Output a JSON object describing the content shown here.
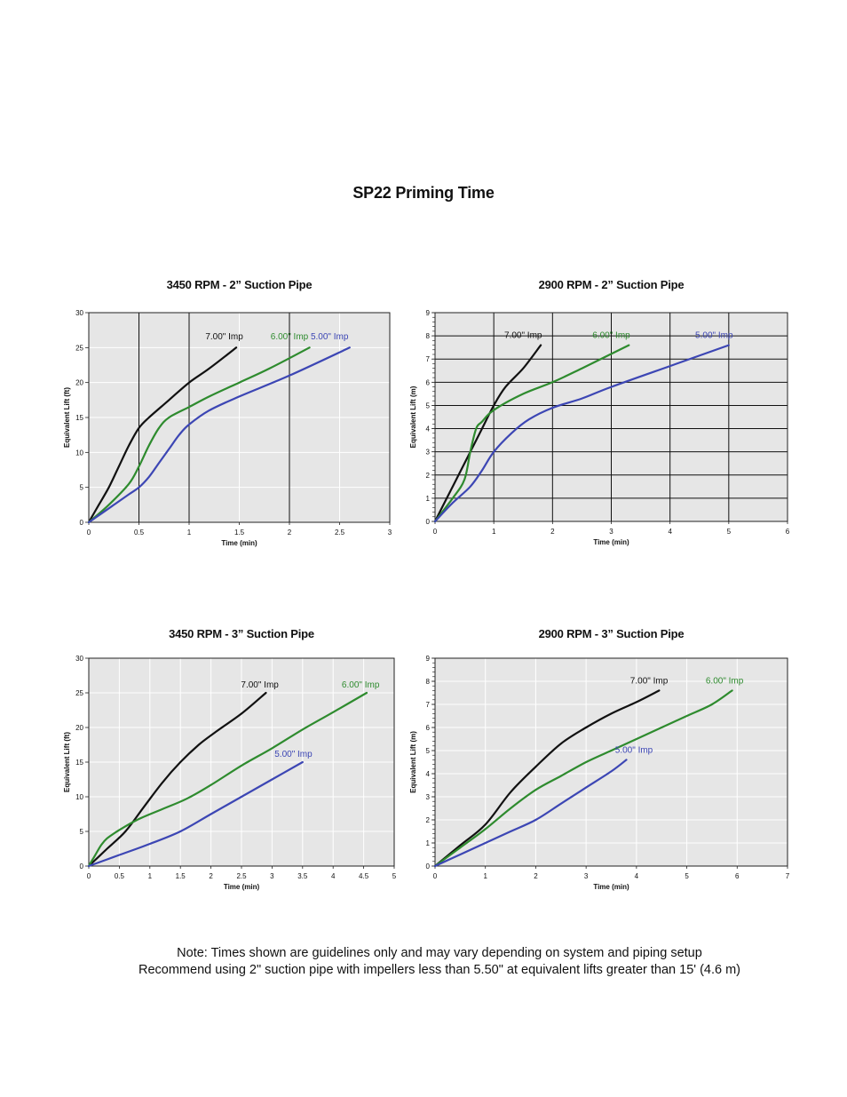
{
  "page_title": "SP22 Priming Time",
  "note_lines": [
    "Note: Times shown are guidelines only and may vary depending on system and piping setup",
    "Recommend using 2\" suction pipe with impellers less than 5.50\" at equivalent lifts greater than 15' (4.6 m)"
  ],
  "colors": {
    "black": "#111111",
    "green": "#2e8b2e",
    "blue": "#3c46b4",
    "plot_bg": "#e6e6e6"
  },
  "chart_data": [
    {
      "type": "line",
      "title": "3450 RPM - 2” Suction Pipe",
      "xlabel": "Time (min)",
      "ylabel": "Equivalent Lift (ft)",
      "xlim": [
        0,
        3
      ],
      "ylim": [
        0,
        30
      ],
      "xticks": [
        "0",
        "0.5",
        "1",
        "1.5",
        "2",
        "2.5",
        "3"
      ],
      "xtick_values": [
        0,
        0.5,
        1,
        1.5,
        2,
        2.5,
        3
      ],
      "yticks": [
        "0",
        "5",
        "10",
        "15",
        "20",
        "25",
        "30"
      ],
      "ytick_values": [
        0,
        5,
        10,
        15,
        20,
        25,
        30
      ],
      "grid": "light",
      "vlines_dark": [
        0.5,
        1,
        2
      ],
      "series": [
        {
          "name": "7.00\" Imp",
          "color": "black",
          "x": [
            0,
            0.1,
            0.2,
            0.3,
            0.4,
            0.5,
            0.6,
            0.8,
            1.0,
            1.2,
            1.47
          ],
          "y": [
            0,
            2.5,
            5,
            8,
            11,
            13.5,
            15,
            17.5,
            20,
            22,
            25
          ]
        },
        {
          "name": "6.00\" Imp",
          "color": "green",
          "x": [
            0,
            0.2,
            0.4,
            0.5,
            0.6,
            0.7,
            0.8,
            1.0,
            1.2,
            1.5,
            1.8,
            2.2
          ],
          "y": [
            0,
            2.5,
            5.5,
            8,
            11,
            13.5,
            15,
            16.5,
            18,
            20,
            22,
            25
          ]
        },
        {
          "name": "5.00\" Imp",
          "color": "blue",
          "x": [
            0,
            0.2,
            0.4,
            0.5,
            0.6,
            0.7,
            0.8,
            0.9,
            1.0,
            1.2,
            1.5,
            2.0,
            2.6
          ],
          "y": [
            0,
            2,
            4,
            5,
            6.5,
            8.5,
            10.5,
            12.5,
            14,
            16,
            18,
            21,
            25
          ]
        }
      ],
      "labels": [
        {
          "text": "7.00\" Imp",
          "color": "black",
          "x": 1.35,
          "y": 26.2
        },
        {
          "text": "6.00\" Imp",
          "color": "green",
          "x": 2.0,
          "y": 26.2
        },
        {
          "text": "5.00\" Imp",
          "color": "blue",
          "x": 2.4,
          "y": 26.2
        }
      ]
    },
    {
      "type": "line",
      "title": "2900 RPM - 2” Suction Pipe",
      "xlabel": "Time (min)",
      "ylabel": "Equivalent Lift (m)",
      "xlim": [
        0,
        6
      ],
      "ylim": [
        0,
        9
      ],
      "xticks": [
        "0",
        "1",
        "2",
        "3",
        "4",
        "5",
        "6"
      ],
      "xtick_values": [
        0,
        1,
        2,
        3,
        4,
        5,
        6
      ],
      "yticks": [
        "0",
        "1",
        "2",
        "3",
        "4",
        "5",
        "6",
        "7",
        "8",
        "9"
      ],
      "ytick_values": [
        0,
        1,
        2,
        3,
        4,
        5,
        6,
        7,
        8,
        9
      ],
      "grid": "dark",
      "series": [
        {
          "name": "7.00\" Imp",
          "color": "black",
          "x": [
            0,
            0.2,
            0.4,
            0.6,
            0.8,
            1.0,
            1.2,
            1.5,
            1.8
          ],
          "y": [
            0,
            1,
            2,
            3,
            4,
            5,
            5.8,
            6.6,
            7.6
          ]
        },
        {
          "name": "6.00\" Imp",
          "color": "green",
          "x": [
            0,
            0.3,
            0.5,
            0.6,
            0.7,
            0.8,
            1.0,
            1.5,
            2.0,
            2.5,
            3.3
          ],
          "y": [
            0,
            1.0,
            1.8,
            3.0,
            4.0,
            4.3,
            4.8,
            5.5,
            6.0,
            6.6,
            7.6
          ]
        },
        {
          "name": "5.00\" Imp",
          "color": "blue",
          "x": [
            0,
            0.3,
            0.6,
            0.8,
            1.0,
            1.3,
            1.6,
            2.0,
            2.5,
            3.0,
            4.0,
            5.0
          ],
          "y": [
            0,
            0.8,
            1.5,
            2.2,
            3.0,
            3.8,
            4.4,
            4.9,
            5.3,
            5.8,
            6.7,
            7.6
          ]
        }
      ],
      "labels": [
        {
          "text": "7.00\" Imp",
          "color": "black",
          "x": 1.5,
          "y": 7.9
        },
        {
          "text": "6.00\" Imp",
          "color": "green",
          "x": 3.0,
          "y": 7.9
        },
        {
          "text": "5.00\" Imp",
          "color": "blue",
          "x": 4.75,
          "y": 7.9
        }
      ]
    },
    {
      "type": "line",
      "title": "3450 RPM - 3” Suction Pipe",
      "xlabel": "Time (min)",
      "ylabel": "Equivalent Lift (ft)",
      "xlim": [
        0,
        5
      ],
      "ylim": [
        0,
        30
      ],
      "xticks": [
        "0",
        "0.5",
        "1",
        "1.5",
        "2",
        "2.5",
        "3",
        "3.5",
        "4",
        "4.5",
        "5"
      ],
      "xtick_values": [
        0,
        0.5,
        1,
        1.5,
        2,
        2.5,
        3,
        3.5,
        4,
        4.5,
        5
      ],
      "yticks": [
        "0",
        "5",
        "10",
        "15",
        "20",
        "25",
        "30"
      ],
      "ytick_values": [
        0,
        5,
        10,
        15,
        20,
        25,
        30
      ],
      "grid": "light",
      "series": [
        {
          "name": "7.00\" Imp",
          "color": "black",
          "x": [
            0,
            0.3,
            0.6,
            0.9,
            1.2,
            1.5,
            1.8,
            2.1,
            2.5,
            2.9
          ],
          "y": [
            0,
            2.5,
            5,
            8.5,
            12,
            15,
            17.5,
            19.5,
            22,
            25
          ]
        },
        {
          "name": "6.00\" Imp",
          "color": "green",
          "x": [
            0,
            0.1,
            0.2,
            0.3,
            0.5,
            0.8,
            1.2,
            1.6,
            2.0,
            2.5,
            3.0,
            3.5,
            4.0,
            4.55
          ],
          "y": [
            0,
            1.5,
            3,
            4,
            5.2,
            6.7,
            8.2,
            9.7,
            11.7,
            14.5,
            17,
            19.7,
            22.2,
            25
          ]
        },
        {
          "name": "5.00\" Imp",
          "color": "blue",
          "x": [
            0,
            0.5,
            1.0,
            1.5,
            2.0,
            2.5,
            3.0,
            3.5
          ],
          "y": [
            0,
            1.6,
            3.2,
            5,
            7.5,
            10,
            12.5,
            15
          ]
        }
      ],
      "labels": [
        {
          "text": "7.00\" Imp",
          "color": "black",
          "x": 2.8,
          "y": 25.8
        },
        {
          "text": "6.00\" Imp",
          "color": "green",
          "x": 4.45,
          "y": 25.8
        },
        {
          "text": "5.00\" Imp",
          "color": "blue",
          "x": 3.35,
          "y": 15.8
        }
      ]
    },
    {
      "type": "line",
      "title": "2900 RPM - 3” Suction Pipe",
      "xlabel": "Time (min)",
      "ylabel": "Equivalent Lift (m)",
      "xlim": [
        0,
        7
      ],
      "ylim": [
        0,
        9
      ],
      "xticks": [
        "0",
        "1",
        "2",
        "3",
        "4",
        "5",
        "6",
        "7"
      ],
      "xtick_values": [
        0,
        1,
        2,
        3,
        4,
        5,
        6,
        7
      ],
      "yticks": [
        "0",
        "1",
        "2",
        "3",
        "4",
        "5",
        "6",
        "7",
        "8",
        "9"
      ],
      "ytick_values": [
        0,
        1,
        2,
        3,
        4,
        5,
        6,
        7,
        8,
        9
      ],
      "grid": "light",
      "series": [
        {
          "name": "7.00\" Imp",
          "color": "black",
          "x": [
            0,
            0.5,
            1.0,
            1.5,
            2.0,
            2.5,
            3.0,
            3.5,
            4.0,
            4.45
          ],
          "y": [
            0,
            0.9,
            1.8,
            3.2,
            4.3,
            5.3,
            6.0,
            6.6,
            7.1,
            7.6
          ]
        },
        {
          "name": "6.00\" Imp",
          "color": "green",
          "x": [
            0,
            0.5,
            1.0,
            1.5,
            2.0,
            2.5,
            3.0,
            3.5,
            4.0,
            4.5,
            5.0,
            5.5,
            5.9
          ],
          "y": [
            0,
            0.8,
            1.6,
            2.5,
            3.3,
            3.9,
            4.5,
            5.0,
            5.5,
            6.0,
            6.5,
            7.0,
            7.6
          ]
        },
        {
          "name": "5.00\" Imp",
          "color": "blue",
          "x": [
            0,
            0.5,
            1.0,
            1.5,
            2.0,
            2.5,
            3.0,
            3.5,
            3.8
          ],
          "y": [
            0,
            0.5,
            1.0,
            1.5,
            2.0,
            2.7,
            3.4,
            4.1,
            4.6
          ]
        }
      ],
      "labels": [
        {
          "text": "7.00\" Imp",
          "color": "black",
          "x": 4.25,
          "y": 7.9
        },
        {
          "text": "6.00\" Imp",
          "color": "green",
          "x": 5.75,
          "y": 7.9
        },
        {
          "text": "5.00\" Imp",
          "color": "blue",
          "x": 3.95,
          "y": 4.9
        }
      ]
    }
  ]
}
